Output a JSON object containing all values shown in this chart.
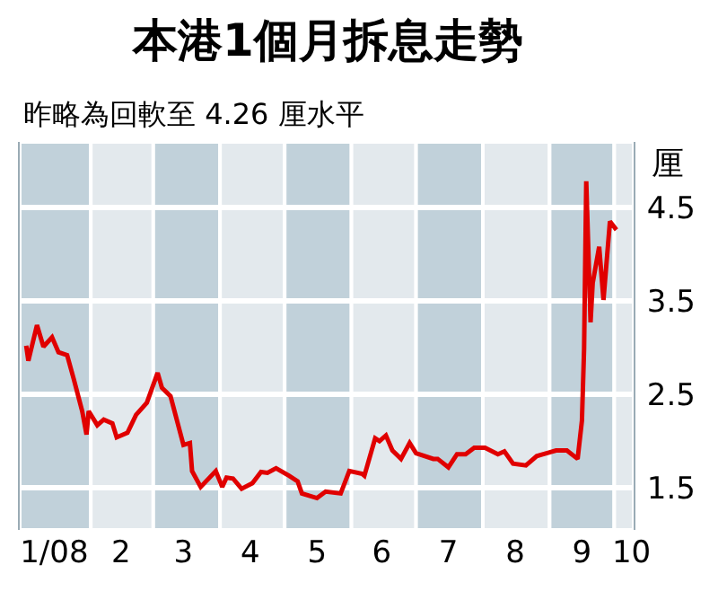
{
  "chart_data": {
    "type": "line",
    "title": "本港1個月拆息走勢",
    "subtitle": "昨略為回軟至 4.26 厘水平",
    "ylabel": "厘",
    "x": [
      "2008-01-02",
      "2008-01-03",
      "2008-01-07",
      "2008-01-10",
      "2008-01-14",
      "2008-01-17",
      "2008-01-21",
      "2008-01-24",
      "2008-01-28",
      "2008-01-30",
      "2008-01-31",
      "2008-02-04",
      "2008-02-07",
      "2008-02-11",
      "2008-02-13",
      "2008-02-18",
      "2008-02-22",
      "2008-02-27",
      "2008-03-03",
      "2008-03-05",
      "2008-03-09",
      "2008-03-15",
      "2008-03-18",
      "2008-03-19",
      "2008-03-23",
      "2008-03-30",
      "2008-04-02",
      "2008-04-04",
      "2008-04-07",
      "2008-04-11",
      "2008-04-16",
      "2008-04-20",
      "2008-04-23",
      "2008-04-27",
      "2008-05-03",
      "2008-05-07",
      "2008-05-09",
      "2008-05-16",
      "2008-05-20",
      "2008-05-27",
      "2008-05-31",
      "2008-06-06",
      "2008-06-07",
      "2008-06-12",
      "2008-06-14",
      "2008-06-17",
      "2008-06-20",
      "2008-06-24",
      "2008-06-28",
      "2008-07-01",
      "2008-07-09",
      "2008-07-11",
      "2008-07-16",
      "2008-07-20",
      "2008-07-24",
      "2008-07-28",
      "2008-08-02",
      "2008-08-08",
      "2008-08-11",
      "2008-08-15",
      "2008-08-21",
      "2008-08-26",
      "2008-09-01",
      "2008-09-04",
      "2008-09-09",
      "2008-09-14",
      "2008-09-16",
      "2008-09-17",
      "2008-09-18",
      "2008-09-20",
      "2008-09-21",
      "2008-09-24",
      "2008-09-26",
      "2008-09-29",
      "2008-10-02"
    ],
    "series": [
      {
        "color": "#e00000",
        "values": [
          3.02,
          2.86,
          3.24,
          3.01,
          3.11,
          2.95,
          2.92,
          2.67,
          2.32,
          2.07,
          2.32,
          2.17,
          2.23,
          2.19,
          2.04,
          2.09,
          2.28,
          2.41,
          2.73,
          2.57,
          2.48,
          1.96,
          1.98,
          1.68,
          1.51,
          1.68,
          1.51,
          1.61,
          1.6,
          1.49,
          1.55,
          1.67,
          1.66,
          1.71,
          1.63,
          1.57,
          1.44,
          1.39,
          1.46,
          1.44,
          1.68,
          1.65,
          1.63,
          2.03,
          2.0,
          2.06,
          1.9,
          1.81,
          1.98,
          1.87,
          1.81,
          1.81,
          1.72,
          1.86,
          1.86,
          1.93,
          1.93,
          1.86,
          1.89,
          1.76,
          1.74,
          1.84,
          1.88,
          1.9,
          1.9,
          1.81,
          2.22,
          2.99,
          4.78,
          3.27,
          3.69,
          4.08,
          3.51,
          4.35,
          4.26
        ]
      }
    ],
    "xlim": [
      "2007-12-30",
      "2008-10-10"
    ],
    "xticks": [
      {
        "value": "2008-01-15",
        "label": "1/08"
      },
      {
        "value": "2008-02-15",
        "label": "2"
      },
      {
        "value": "2008-03-15",
        "label": "3"
      },
      {
        "value": "2008-04-15",
        "label": "4"
      },
      {
        "value": "2008-05-16",
        "label": "5"
      },
      {
        "value": "2008-06-15",
        "label": "6"
      },
      {
        "value": "2008-07-16",
        "label": "7"
      },
      {
        "value": "2008-08-16",
        "label": "8"
      },
      {
        "value": "2008-09-16",
        "label": "9"
      },
      {
        "value": "2008-10-09",
        "label": "10"
      }
    ],
    "ylim": [
      1.05,
      5.2
    ],
    "yticks": [
      1.5,
      2.5,
      3.5,
      4.5
    ],
    "grid": "y",
    "marker": "none",
    "line_style": "solid",
    "bands": [
      {
        "axis": "x",
        "from": "2007-12-30",
        "to": "2008-02-01",
        "color": "#c1d1da"
      },
      {
        "axis": "x",
        "from": "2008-02-01",
        "to": "2008-03-01",
        "color": "#e3e9ed"
      },
      {
        "axis": "x",
        "from": "2008-03-01",
        "to": "2008-04-01",
        "color": "#c1d1da"
      },
      {
        "axis": "x",
        "from": "2008-04-01",
        "to": "2008-05-01",
        "color": "#e3e9ed"
      },
      {
        "axis": "x",
        "from": "2008-05-01",
        "to": "2008-06-01",
        "color": "#c1d1da"
      },
      {
        "axis": "x",
        "from": "2008-06-01",
        "to": "2008-07-01",
        "color": "#e3e9ed"
      },
      {
        "axis": "x",
        "from": "2008-07-01",
        "to": "2008-08-01",
        "color": "#c1d1da"
      },
      {
        "axis": "x",
        "from": "2008-08-01",
        "to": "2008-09-01",
        "color": "#e3e9ed"
      },
      {
        "axis": "x",
        "from": "2008-09-01",
        "to": "2008-10-01",
        "color": "#c1d1da"
      },
      {
        "axis": "x",
        "from": "2008-10-01",
        "to": "2008-10-10",
        "color": "#e3e9ed"
      }
    ]
  }
}
